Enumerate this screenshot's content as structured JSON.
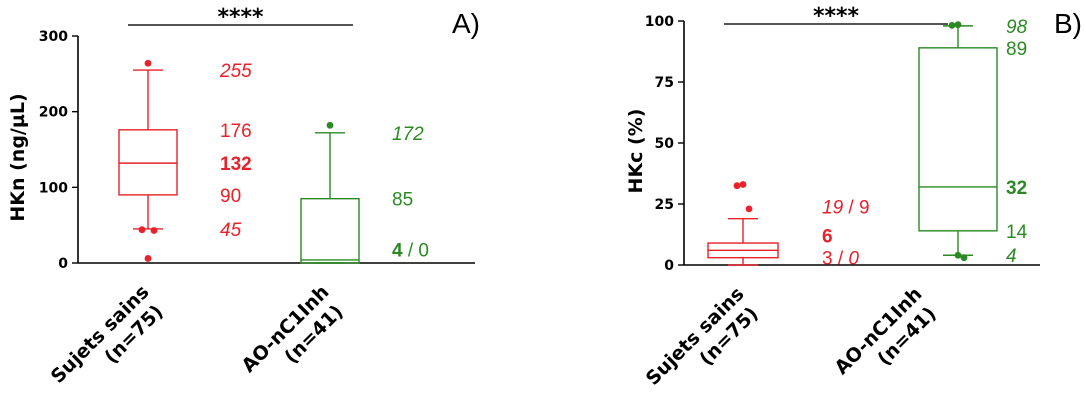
{
  "chart_data": [
    {
      "type": "box",
      "panel_label": "A)",
      "ylabel": "HKn (ng/µL)",
      "ylim": [
        0,
        300
      ],
      "yticks": [
        "0",
        "100",
        "200",
        "300"
      ],
      "significance": "****",
      "colors": {
        "Sujets sains": "#e8212a",
        "AO-nC1Inh": "#2b8a24"
      },
      "groups": [
        {
          "name_line1": "Sujets sains",
          "name_line2": "(n=75)",
          "color": "#e8212a",
          "q1": 90,
          "median": 132,
          "q3": 176,
          "whisker_low": 45,
          "whisker_high": 255,
          "outliers": [
            264,
            44,
            43,
            6
          ],
          "annotations": [
            {
              "text": "255",
              "y": 255,
              "style": "italic"
            },
            {
              "text": "176",
              "y": 176,
              "style": "normal"
            },
            {
              "text": "132",
              "y": 132,
              "style": "bold"
            },
            {
              "text": "90",
              "y": 90,
              "style": "normal"
            },
            {
              "text": "45",
              "y": 45,
              "style": "italic"
            }
          ]
        },
        {
          "name_line1": "AO-nC1Inh",
          "name_line2": "(n=41)",
          "color": "#2b8a24",
          "q1": 0,
          "median": 4,
          "q3": 85,
          "whisker_low": 0,
          "whisker_high": 172,
          "outliers": [
            182
          ],
          "annotations": [
            {
              "text": "172",
              "y": 172,
              "style": "italic"
            },
            {
              "text": "85",
              "y": 85,
              "style": "normal"
            },
            {
              "y": 18,
              "parts": [
                {
                  "text": "4",
                  "style": "bold"
                },
                {
                  "text": " / 0",
                  "style": "normal"
                }
              ]
            }
          ]
        }
      ]
    },
    {
      "type": "box",
      "panel_label": "B)",
      "ylabel": "HKc (%)",
      "ylim": [
        0,
        100
      ],
      "yticks": [
        "0",
        "25",
        "50",
        "75",
        "100"
      ],
      "significance": "****",
      "colors": {
        "Sujets sains": "#e8212a",
        "AO-nC1Inh": "#2b8a24"
      },
      "groups": [
        {
          "name_line1": "Sujets sains",
          "name_line2": "(n=75)",
          "color": "#e8212a",
          "q1": 3,
          "median": 6,
          "q3": 9,
          "whisker_low": 0,
          "whisker_high": 19,
          "outliers": [
            33,
            32.5,
            23
          ],
          "annotations": [
            {
              "y": 24,
              "parts": [
                {
                  "text": "19",
                  "style": "italic"
                },
                {
                  "text": " / 9",
                  "style": "normal"
                }
              ]
            },
            {
              "y": 12,
              "parts": [
                {
                  "text": "6",
                  "style": "bold"
                }
              ]
            },
            {
              "y": 3,
              "parts": [
                {
                  "text": "3",
                  "style": "normal"
                },
                {
                  "text": " / ",
                  "style": "normal"
                },
                {
                  "text": "0",
                  "style": "italic"
                }
              ]
            }
          ]
        },
        {
          "name_line1": "AO-nC1Inh",
          "name_line2": "(n=41)",
          "color": "#2b8a24",
          "q1": 14,
          "median": 32,
          "q3": 89,
          "whisker_low": 4,
          "whisker_high": 98,
          "outliers": [
            98.5,
            98.2,
            3,
            4
          ],
          "annotations": [
            {
              "text": "98",
              "y": 98,
              "style": "italic"
            },
            {
              "text": "89",
              "y": 89,
              "style": "normal"
            },
            {
              "text": "32",
              "y": 32,
              "style": "bold"
            },
            {
              "text": "14",
              "y": 14,
              "style": "normal"
            },
            {
              "text": "4",
              "y": 4,
              "style": "italic"
            }
          ]
        }
      ]
    }
  ]
}
